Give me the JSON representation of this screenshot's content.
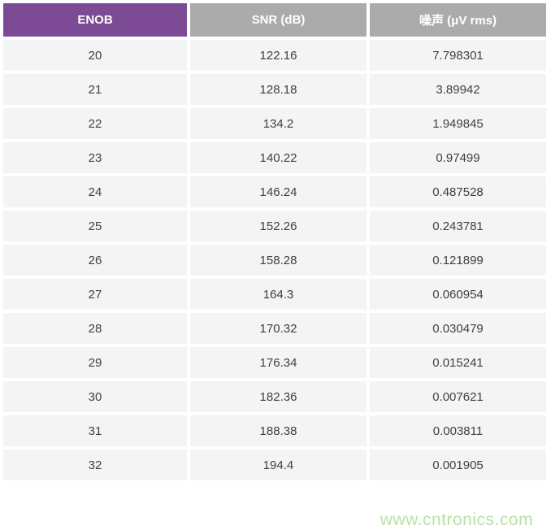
{
  "chart_data": {
    "type": "table",
    "title": "",
    "columns": [
      "ENOB",
      "SNR (dB)",
      "噪声 (μV rms)"
    ],
    "rows": [
      [
        "20",
        "122.16",
        "7.798301"
      ],
      [
        "21",
        "128.18",
        "3.89942"
      ],
      [
        "22",
        "134.2",
        "1.949845"
      ],
      [
        "23",
        "140.22",
        "0.97499"
      ],
      [
        "24",
        "146.24",
        "0.487528"
      ],
      [
        "25",
        "152.26",
        "0.243781"
      ],
      [
        "26",
        "158.28",
        "0.121899"
      ],
      [
        "27",
        "164.3",
        "0.060954"
      ],
      [
        "28",
        "170.32",
        "0.030479"
      ],
      [
        "29",
        "176.34",
        "0.015241"
      ],
      [
        "30",
        "182.36",
        "0.007621"
      ],
      [
        "31",
        "188.38",
        "0.003811"
      ],
      [
        "32",
        "194.4",
        "0.001905"
      ]
    ],
    "legend": null,
    "grid": false
  },
  "watermark": {
    "text": "www.cntronics.com",
    "color": "#b7e3a4"
  },
  "colors": {
    "header_accent_purple": "#7d4b96",
    "header_gray": "#ababab",
    "row_background": "#f4f4f5",
    "cell_text": "#404040",
    "header_text": "#ffffff",
    "page_background": "#ffffff"
  }
}
